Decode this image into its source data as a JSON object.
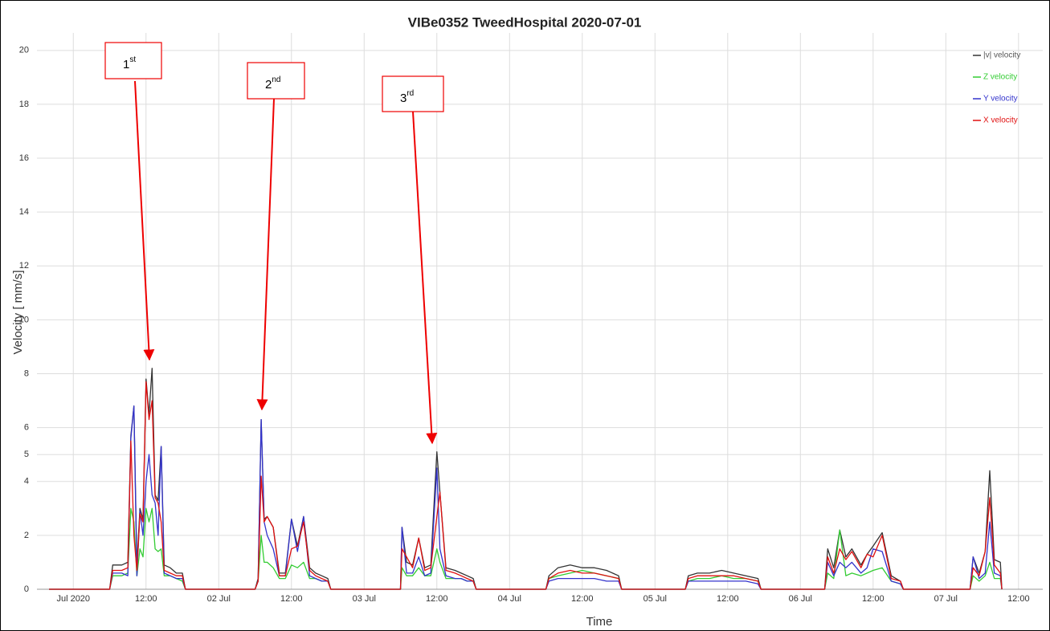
{
  "chart_data": {
    "type": "line",
    "title": "VIBe0352 TweedHospital 2020-07-01",
    "x_label": "Time",
    "y_label": "Velocity [ mm/s]",
    "xlim": [
      "2020-06-30T18:00",
      "2020-07-07T16:00"
    ],
    "xticks": [
      {
        "value": "2020-07-01T00:00",
        "label": "Jul 2020"
      },
      {
        "value": "2020-07-01T12:00",
        "label": "12:00"
      },
      {
        "value": "2020-07-02T00:00",
        "label": "02 Jul"
      },
      {
        "value": "2020-07-02T12:00",
        "label": "12:00"
      },
      {
        "value": "2020-07-03T00:00",
        "label": "03 Jul"
      },
      {
        "value": "2020-07-03T12:00",
        "label": "12:00"
      },
      {
        "value": "2020-07-04T00:00",
        "label": "04 Jul"
      },
      {
        "value": "2020-07-04T12:00",
        "label": "12:00"
      },
      {
        "value": "2020-07-05T00:00",
        "label": "05 Jul"
      },
      {
        "value": "2020-07-05T12:00",
        "label": "12:00"
      },
      {
        "value": "2020-07-06T00:00",
        "label": "06 Jul"
      },
      {
        "value": "2020-07-06T12:00",
        "label": "12:00"
      },
      {
        "value": "2020-07-07T00:00",
        "label": "07 Jul"
      },
      {
        "value": "2020-07-07T12:00",
        "label": "12:00"
      }
    ],
    "ylim": [
      0,
      20.65
    ],
    "yticks": [
      0,
      2,
      4,
      5,
      6,
      8,
      10,
      12,
      14,
      16,
      18,
      20
    ],
    "grid": true,
    "legend": "top-right",
    "x": [
      "2020-06-30T20:00",
      "2020-07-01T06:00",
      "2020-07-01T06:30",
      "2020-07-01T08:00",
      "2020-07-01T09:00",
      "2020-07-01T09:30",
      "2020-07-01T10:00",
      "2020-07-01T10:30",
      "2020-07-01T11:00",
      "2020-07-01T11:30",
      "2020-07-01T12:00",
      "2020-07-01T12:30",
      "2020-07-01T13:00",
      "2020-07-01T13:30",
      "2020-07-01T14:00",
      "2020-07-01T14:30",
      "2020-07-01T15:00",
      "2020-07-01T16:00",
      "2020-07-01T17:00",
      "2020-07-01T18:00",
      "2020-07-01T18:30",
      "2020-07-02T06:00",
      "2020-07-02T06:30",
      "2020-07-02T07:00",
      "2020-07-02T07:30",
      "2020-07-02T08:00",
      "2020-07-02T09:00",
      "2020-07-02T10:00",
      "2020-07-02T11:00",
      "2020-07-02T12:00",
      "2020-07-02T13:00",
      "2020-07-02T14:00",
      "2020-07-02T15:00",
      "2020-07-02T16:00",
      "2020-07-02T17:00",
      "2020-07-02T18:00",
      "2020-07-02T18:30",
      "2020-07-03T06:00",
      "2020-07-03T06:15",
      "2020-07-03T07:00",
      "2020-07-03T08:00",
      "2020-07-03T09:00",
      "2020-07-03T10:00",
      "2020-07-03T11:00",
      "2020-07-03T12:00",
      "2020-07-03T12:30",
      "2020-07-03T13:30",
      "2020-07-03T15:00",
      "2020-07-03T16:00",
      "2020-07-03T17:00",
      "2020-07-03T18:00",
      "2020-07-03T18:30",
      "2020-07-04T06:00",
      "2020-07-04T06:30",
      "2020-07-04T08:00",
      "2020-07-04T10:00",
      "2020-07-04T12:00",
      "2020-07-04T14:00",
      "2020-07-04T16:00",
      "2020-07-04T18:00",
      "2020-07-04T18:30",
      "2020-07-05T05:00",
      "2020-07-05T05:30",
      "2020-07-05T07:00",
      "2020-07-05T09:00",
      "2020-07-05T11:00",
      "2020-07-05T13:00",
      "2020-07-05T15:00",
      "2020-07-05T17:00",
      "2020-07-05T17:30",
      "2020-07-06T04:00",
      "2020-07-06T04:30",
      "2020-07-06T05:30",
      "2020-07-06T06:30",
      "2020-07-06T07:30",
      "2020-07-06T08:30",
      "2020-07-06T10:00",
      "2020-07-06T11:00",
      "2020-07-06T12:00",
      "2020-07-06T13:30",
      "2020-07-06T15:00",
      "2020-07-06T16:30",
      "2020-07-06T17:00",
      "2020-07-07T04:00",
      "2020-07-07T04:30",
      "2020-07-07T05:30",
      "2020-07-07T06:30",
      "2020-07-07T07:15",
      "2020-07-07T08:00",
      "2020-07-07T09:00",
      "2020-07-07T09:15"
    ],
    "series": [
      {
        "name": "|v| velocity",
        "color": "#333333",
        "values": [
          0,
          0,
          0.9,
          0.9,
          1.0,
          5.7,
          6.8,
          0.9,
          3.0,
          2.6,
          7.8,
          6.5,
          8.2,
          3.5,
          3.3,
          5.3,
          0.9,
          0.8,
          0.6,
          0.6,
          0,
          0,
          0.4,
          6.3,
          2.6,
          2.7,
          2.3,
          0.6,
          0.6,
          2.6,
          1.6,
          2.7,
          0.8,
          0.6,
          0.5,
          0.4,
          0,
          0,
          2.3,
          1.0,
          0.9,
          1.9,
          0.8,
          0.9,
          5.1,
          3.6,
          0.8,
          0.7,
          0.6,
          0.5,
          0.4,
          0,
          0,
          0.5,
          0.8,
          0.9,
          0.8,
          0.8,
          0.7,
          0.5,
          0,
          0,
          0.5,
          0.6,
          0.6,
          0.7,
          0.6,
          0.5,
          0.4,
          0,
          0,
          1.5,
          0.8,
          2.2,
          1.2,
          1.5,
          0.9,
          1.3,
          1.6,
          2.1,
          0.5,
          0.3,
          0,
          0,
          1.2,
          0.6,
          1.4,
          4.4,
          1.1,
          1.0,
          0
        ]
      },
      {
        "name": "Z velocity",
        "color": "#33cc33",
        "values": [
          0,
          0,
          0.5,
          0.5,
          0.6,
          3.0,
          2.5,
          0.5,
          1.5,
          1.2,
          3.0,
          2.5,
          3.0,
          1.5,
          1.4,
          1.5,
          0.5,
          0.5,
          0.4,
          0.3,
          0,
          0,
          0.3,
          2.0,
          1.0,
          1.0,
          0.8,
          0.4,
          0.4,
          0.9,
          0.8,
          1.0,
          0.4,
          0.4,
          0.3,
          0.3,
          0,
          0,
          0.8,
          0.5,
          0.5,
          0.8,
          0.5,
          0.5,
          1.5,
          1.0,
          0.4,
          0.4,
          0.4,
          0.3,
          0.3,
          0,
          0,
          0.4,
          0.5,
          0.6,
          0.7,
          0.6,
          0.5,
          0.4,
          0,
          0,
          0.3,
          0.4,
          0.4,
          0.5,
          0.4,
          0.4,
          0.3,
          0,
          0,
          0.6,
          0.4,
          2.2,
          0.5,
          0.6,
          0.5,
          0.6,
          0.7,
          0.8,
          0.3,
          0.2,
          0,
          0,
          0.5,
          0.3,
          0.5,
          1.0,
          0.4,
          0.4,
          0
        ]
      },
      {
        "name": "Y velocity",
        "color": "#3333cc",
        "values": [
          0,
          0,
          0.6,
          0.6,
          0.5,
          5.6,
          6.8,
          0.5,
          2.9,
          2.0,
          4.0,
          5.0,
          3.5,
          3.2,
          2.0,
          5.3,
          0.6,
          0.5,
          0.4,
          0.4,
          0,
          0,
          0.3,
          6.3,
          2.5,
          2.0,
          1.5,
          0.5,
          0.5,
          2.6,
          1.4,
          2.7,
          0.5,
          0.4,
          0.3,
          0.3,
          0,
          0,
          2.3,
          0.6,
          0.6,
          1.2,
          0.5,
          0.6,
          4.5,
          1.5,
          0.5,
          0.4,
          0.4,
          0.3,
          0.3,
          0,
          0,
          0.3,
          0.4,
          0.4,
          0.4,
          0.4,
          0.3,
          0.3,
          0,
          0,
          0.3,
          0.3,
          0.3,
          0.3,
          0.3,
          0.3,
          0.2,
          0,
          0,
          1.0,
          0.5,
          1.0,
          0.8,
          1.0,
          0.6,
          0.8,
          1.5,
          1.4,
          0.3,
          0.2,
          0,
          0,
          1.2,
          0.4,
          0.6,
          2.5,
          0.6,
          0.5,
          0
        ]
      },
      {
        "name": "X velocity",
        "color": "#e01010",
        "values": [
          0,
          0,
          0.7,
          0.7,
          0.8,
          5.5,
          2.0,
          0.7,
          2.8,
          2.5,
          7.7,
          6.3,
          7.0,
          3.4,
          3.2,
          2.5,
          0.7,
          0.6,
          0.5,
          0.5,
          0,
          0,
          0.3,
          4.2,
          2.5,
          2.7,
          2.3,
          0.5,
          0.5,
          1.5,
          1.6,
          2.5,
          0.7,
          0.5,
          0.4,
          0.3,
          0,
          0,
          1.5,
          1.2,
          0.8,
          1.9,
          0.7,
          0.8,
          2.7,
          3.6,
          0.7,
          0.6,
          0.5,
          0.4,
          0.3,
          0,
          0,
          0.4,
          0.6,
          0.7,
          0.6,
          0.6,
          0.5,
          0.4,
          0,
          0,
          0.4,
          0.5,
          0.5,
          0.5,
          0.5,
          0.4,
          0.3,
          0,
          0,
          1.2,
          0.6,
          1.5,
          1.1,
          1.4,
          0.8,
          1.3,
          1.2,
          2.0,
          0.4,
          0.3,
          0,
          0,
          0.8,
          0.5,
          1.4,
          3.4,
          0.9,
          0.6,
          0
        ]
      }
    ],
    "annotations": [
      {
        "number": "1",
        "suffix": "st"
      },
      {
        "number": "2",
        "suffix": "nd"
      },
      {
        "number": "3",
        "suffix": "rd"
      }
    ]
  }
}
